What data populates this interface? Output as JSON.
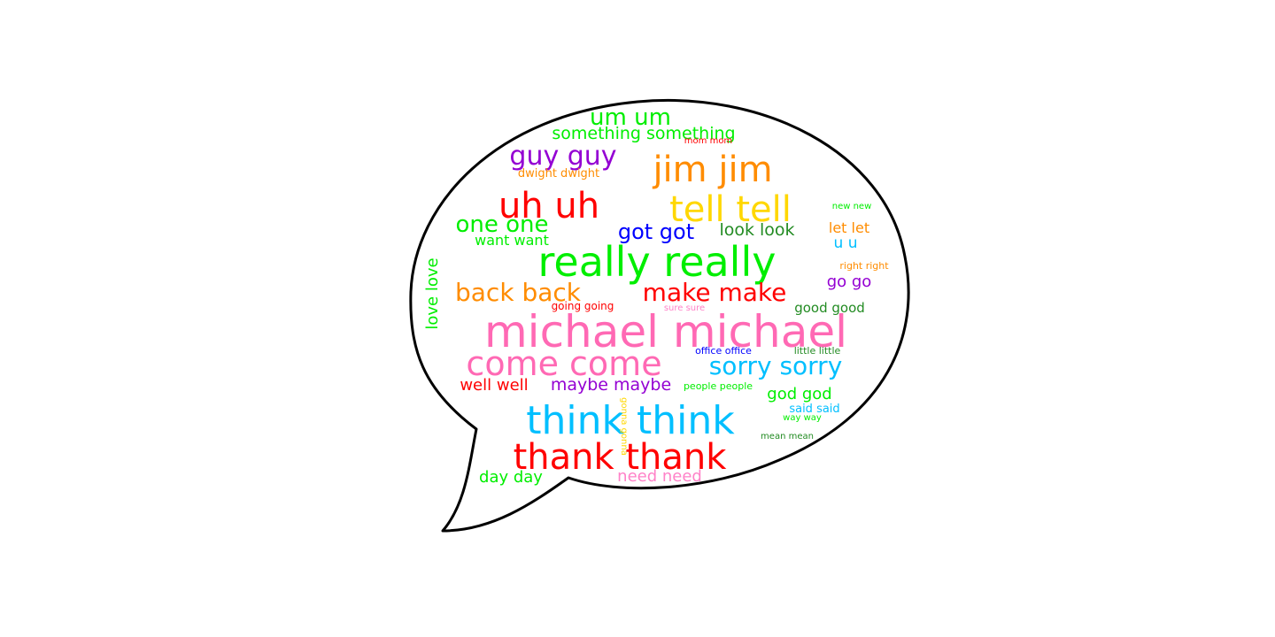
{
  "bubble": {
    "stroke_color": "#000000",
    "fill_color": "#ffffff"
  },
  "colors": {
    "pink": "#ff69b4",
    "green": "#00ee00",
    "red": "#ff0000",
    "sky": "#00bfff",
    "orange": "#ff8c00",
    "gold": "#ffd700",
    "purple": "#9400d3",
    "blue": "#0000ff",
    "dark_green": "#228b22",
    "light_pink": "#ff82c8"
  },
  "words": [
    {
      "text": "michael michael",
      "color": "pink"
    },
    {
      "text": "really really",
      "color": "green"
    },
    {
      "text": "think think",
      "color": "sky"
    },
    {
      "text": "thank thank",
      "color": "red"
    },
    {
      "text": "come come",
      "color": "pink"
    },
    {
      "text": "jim jim",
      "color": "orange"
    },
    {
      "text": "tell tell",
      "color": "gold"
    },
    {
      "text": "uh uh",
      "color": "red"
    },
    {
      "text": "sorry sorry",
      "color": "sky"
    },
    {
      "text": "back back",
      "color": "orange"
    },
    {
      "text": "make make",
      "color": "red"
    },
    {
      "text": "guy guy",
      "color": "purple"
    },
    {
      "text": "um um",
      "color": "green"
    },
    {
      "text": "one one",
      "color": "green"
    },
    {
      "text": "got got",
      "color": "blue"
    },
    {
      "text": "maybe maybe",
      "color": "purple"
    },
    {
      "text": "well well",
      "color": "red"
    },
    {
      "text": "look look",
      "color": "dark_green"
    },
    {
      "text": "something something",
      "color": "green"
    },
    {
      "text": "love love",
      "color": "green"
    },
    {
      "text": "god god",
      "color": "green"
    },
    {
      "text": "need need",
      "color": "light_pink"
    },
    {
      "text": "day day",
      "color": "green"
    },
    {
      "text": "want want",
      "color": "green"
    },
    {
      "text": "go go",
      "color": "purple"
    },
    {
      "text": "let let",
      "color": "orange"
    },
    {
      "text": "u u",
      "color": "sky"
    },
    {
      "text": "good good",
      "color": "dark_green"
    },
    {
      "text": "dwight dwight",
      "color": "orange"
    },
    {
      "text": "going going",
      "color": "red"
    },
    {
      "text": "said said",
      "color": "sky"
    },
    {
      "text": "office office",
      "color": "blue"
    },
    {
      "text": "little little",
      "color": "dark_green"
    },
    {
      "text": "people people",
      "color": "green"
    },
    {
      "text": "sure sure",
      "color": "light_pink"
    },
    {
      "text": "right right",
      "color": "orange"
    },
    {
      "text": "new new",
      "color": "green"
    },
    {
      "text": "way way",
      "color": "green"
    },
    {
      "text": "mean mean",
      "color": "dark_green"
    },
    {
      "text": "gonna gonna",
      "color": "gold"
    },
    {
      "text": "mom mom",
      "color": "red"
    }
  ]
}
